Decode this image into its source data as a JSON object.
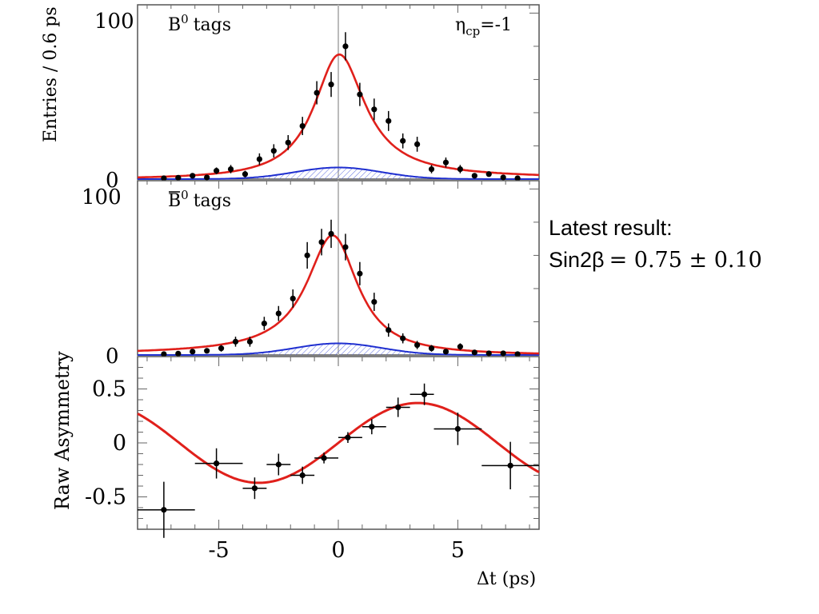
{
  "chart_data": [
    {
      "type": "scatter",
      "panel": "B0 tags",
      "label": "B",
      "label_sup": "0",
      "label_suffix": "tags",
      "eta_label": "η",
      "eta_sub": "cp",
      "eta_value": "=-1",
      "ylabel": "Entries / 0.6 ps",
      "ylim": [
        0,
        105
      ],
      "xlim": [
        -8.4,
        8.4
      ],
      "yticks": [
        "0",
        "100"
      ],
      "points": [
        {
          "x": -7.3,
          "y": 0.5,
          "e": 1
        },
        {
          "x": -6.7,
          "y": 0.8,
          "e": 1
        },
        {
          "x": -6.1,
          "y": 2,
          "e": 1.5
        },
        {
          "x": -5.5,
          "y": 1,
          "e": 1
        },
        {
          "x": -5.1,
          "y": 5,
          "e": 2
        },
        {
          "x": -4.5,
          "y": 6,
          "e": 2.5
        },
        {
          "x": -3.9,
          "y": 3,
          "e": 2
        },
        {
          "x": -3.3,
          "y": 12,
          "e": 3.5
        },
        {
          "x": -2.7,
          "y": 17,
          "e": 4
        },
        {
          "x": -2.1,
          "y": 22,
          "e": 4.5
        },
        {
          "x": -1.5,
          "y": 32,
          "e": 5.5
        },
        {
          "x": -0.9,
          "y": 52,
          "e": 7
        },
        {
          "x": -0.3,
          "y": 57,
          "e": 7.5
        },
        {
          "x": 0.3,
          "y": 80,
          "e": 8.5
        },
        {
          "x": 0.9,
          "y": 51,
          "e": 7
        },
        {
          "x": 1.5,
          "y": 42,
          "e": 6.5
        },
        {
          "x": 2.1,
          "y": 35,
          "e": 6
        },
        {
          "x": 2.7,
          "y": 23,
          "e": 4.5
        },
        {
          "x": 3.3,
          "y": 21,
          "e": 4.5
        },
        {
          "x": 3.9,
          "y": 6,
          "e": 2.5
        },
        {
          "x": 4.5,
          "y": 10,
          "e": 3
        },
        {
          "x": 5.1,
          "y": 6,
          "e": 2.5
        },
        {
          "x": 5.7,
          "y": 2,
          "e": 1.5
        },
        {
          "x": 6.3,
          "y": 3,
          "e": 1.5
        },
        {
          "x": 6.9,
          "y": 1,
          "e": 1
        },
        {
          "x": 7.5,
          "y": 0.5,
          "e": 1
        }
      ],
      "fit": {
        "type": "lorentzian",
        "peak": 75,
        "center": 0,
        "gamma": 1.3,
        "tilt": 0.05
      },
      "background": {
        "type": "gaussian",
        "peak": 7,
        "center": 0,
        "sigma": 1.8
      }
    },
    {
      "type": "scatter",
      "panel": "B0bar tags",
      "label": "B",
      "label_bar": true,
      "label_sup": "0",
      "label_suffix": "tags",
      "ylim": [
        0,
        105
      ],
      "xlim": [
        -8.4,
        8.4
      ],
      "yticks": [
        "0",
        "100"
      ],
      "points": [
        {
          "x": -7.3,
          "y": 0.5,
          "e": 1
        },
        {
          "x": -6.7,
          "y": 0.8,
          "e": 1
        },
        {
          "x": -6.1,
          "y": 2,
          "e": 1.5
        },
        {
          "x": -5.5,
          "y": 2.5,
          "e": 1.5
        },
        {
          "x": -4.9,
          "y": 4,
          "e": 2
        },
        {
          "x": -4.3,
          "y": 8,
          "e": 3
        },
        {
          "x": -3.7,
          "y": 8,
          "e": 3
        },
        {
          "x": -3.1,
          "y": 19,
          "e": 4
        },
        {
          "x": -2.5,
          "y": 25,
          "e": 4.5
        },
        {
          "x": -1.9,
          "y": 34,
          "e": 5.5
        },
        {
          "x": -1.3,
          "y": 60,
          "e": 8
        },
        {
          "x": -0.7,
          "y": 68,
          "e": 8
        },
        {
          "x": -0.3,
          "y": 73,
          "e": 8.5
        },
        {
          "x": 0.3,
          "y": 65,
          "e": 8
        },
        {
          "x": 0.9,
          "y": 49,
          "e": 7
        },
        {
          "x": 1.5,
          "y": 32,
          "e": 5.5
        },
        {
          "x": 2.1,
          "y": 15,
          "e": 4
        },
        {
          "x": 2.7,
          "y": 10,
          "e": 3
        },
        {
          "x": 3.3,
          "y": 6,
          "e": 2.5
        },
        {
          "x": 3.9,
          "y": 4,
          "e": 2
        },
        {
          "x": 4.5,
          "y": 2,
          "e": 1.5
        },
        {
          "x": 5.1,
          "y": 5,
          "e": 2
        },
        {
          "x": 5.7,
          "y": 1.5,
          "e": 1
        },
        {
          "x": 6.3,
          "y": 1,
          "e": 1
        },
        {
          "x": 6.9,
          "y": 1,
          "e": 1
        },
        {
          "x": 7.5,
          "y": 0.5,
          "e": 1
        }
      ],
      "fit": {
        "type": "lorentzian",
        "peak": 72,
        "center": -0.2,
        "gamma": 1.3,
        "tilt": -0.05
      },
      "background": {
        "type": "gaussian",
        "peak": 7,
        "center": 0,
        "sigma": 1.8
      }
    },
    {
      "type": "scatter",
      "panel": "asymmetry",
      "ylabel": "Raw Asymmetry",
      "xlabel_delta": "Δ",
      "xlabel_rest": "t (ps)",
      "ylim": [
        -0.8,
        0.8
      ],
      "xlim": [
        -8.4,
        8.4
      ],
      "xticks": [
        {
          "v": -5,
          "label": "-5"
        },
        {
          "v": 0,
          "label": "0"
        },
        {
          "v": 5,
          "label": "5"
        }
      ],
      "yticks": [
        {
          "v": 0.5,
          "label": "0.5"
        },
        {
          "v": 0,
          "label": "0"
        },
        {
          "v": -0.5,
          "label": "-0.5"
        }
      ],
      "points": [
        {
          "x": -7.3,
          "x0": -8.4,
          "x1": -6.0,
          "y": -0.62,
          "ey": 0.26
        },
        {
          "x": -5.1,
          "x0": -6.0,
          "x1": -4.0,
          "y": -0.19,
          "ey": 0.14
        },
        {
          "x": -3.5,
          "x0": -4.0,
          "x1": -3.0,
          "y": -0.42,
          "ey": 0.1
        },
        {
          "x": -2.5,
          "x0": -3.0,
          "x1": -2.0,
          "y": -0.2,
          "ey": 0.1
        },
        {
          "x": -1.5,
          "x0": -2.0,
          "x1": -1.0,
          "y": -0.3,
          "ey": 0.08
        },
        {
          "x": -0.6,
          "x0": -1.0,
          "x1": 0.0,
          "y": -0.14,
          "ey": 0.05
        },
        {
          "x": 0.4,
          "x0": 0.0,
          "x1": 1.0,
          "y": 0.05,
          "ey": 0.05
        },
        {
          "x": 1.4,
          "x0": 1.0,
          "x1": 2.0,
          "y": 0.15,
          "ey": 0.07
        },
        {
          "x": 2.5,
          "x0": 2.0,
          "x1": 3.0,
          "y": 0.33,
          "ey": 0.09
        },
        {
          "x": 3.6,
          "x0": 3.0,
          "x1": 4.0,
          "y": 0.45,
          "ey": 0.1
        },
        {
          "x": 5.0,
          "x0": 4.0,
          "x1": 6.0,
          "y": 0.13,
          "ey": 0.15
        },
        {
          "x": 7.2,
          "x0": 6.0,
          "x1": 8.4,
          "y": -0.21,
          "ey": 0.22
        }
      ],
      "fit": {
        "type": "sine",
        "amplitude": 0.37,
        "dm": 0.472
      }
    }
  ],
  "annotation": {
    "line1": "Latest result:",
    "line2_prefix": "Sin2β",
    "line2_value": "= 0.75 ± 0.10"
  },
  "colors": {
    "data": "#000000",
    "fit": "#e0201b",
    "background": "#1f2fd0",
    "hatch": "#6070e0",
    "zero_line": "#bbbbbb"
  }
}
